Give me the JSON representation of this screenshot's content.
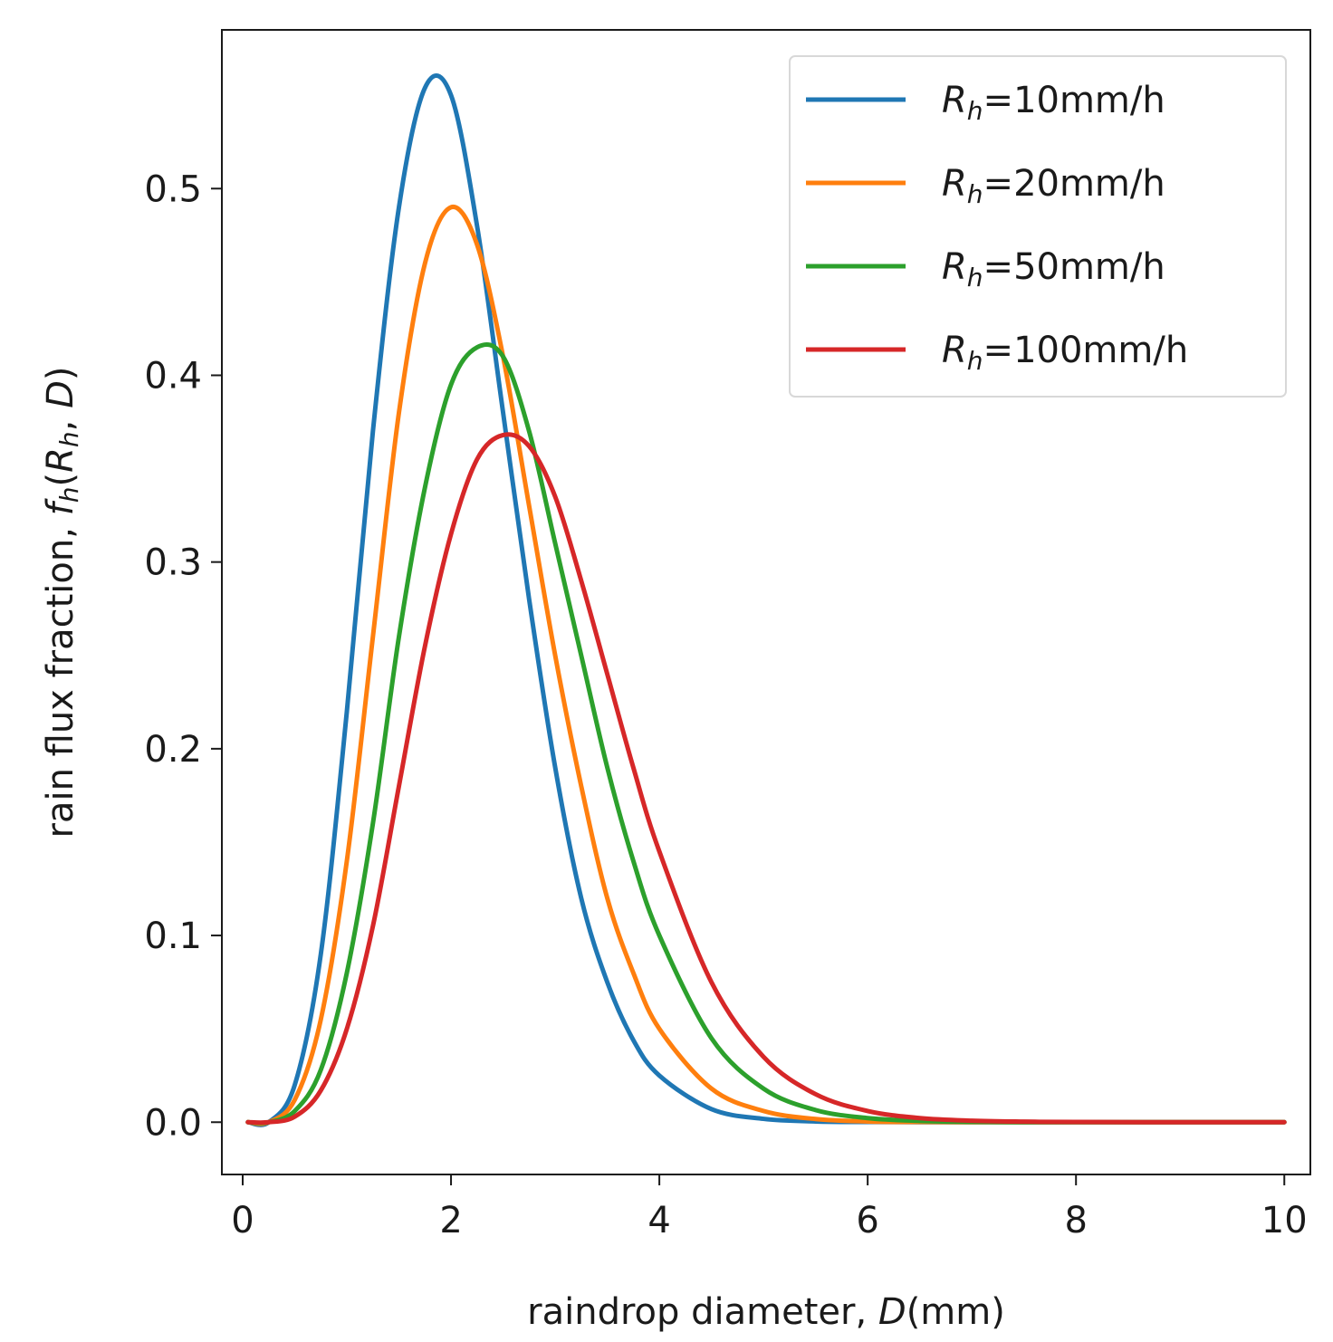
{
  "chart_data": {
    "type": "line",
    "title": "",
    "xlabel": {
      "prefix": "raindrop diameter, ",
      "var": "D",
      "suffix": "(mm)"
    },
    "ylabel": {
      "prefix": "rain flux fraction, ",
      "func": "f",
      "func_sub": "h",
      "open": "(",
      "arg1": "R",
      "arg1_sub": "h",
      "sep": ", ",
      "arg2": "D",
      "close": ")"
    },
    "xlim": [
      -0.2,
      10.25
    ],
    "ylim": [
      -0.028,
      0.585
    ],
    "xticks": [
      0,
      2,
      4,
      6,
      8,
      10
    ],
    "xtick_labels": [
      "0",
      "2",
      "4",
      "6",
      "8",
      "10"
    ],
    "yticks": [
      0.0,
      0.1,
      0.2,
      0.3,
      0.4,
      0.5
    ],
    "ytick_labels": [
      "0.0",
      "0.1",
      "0.2",
      "0.3",
      "0.4",
      "0.5"
    ],
    "grid": false,
    "legend_position": "top-right",
    "x": [
      0.05,
      0.25,
      0.5,
      0.75,
      1.0,
      1.25,
      1.5,
      1.75,
      2.0,
      2.25,
      2.5,
      2.75,
      3.0,
      3.25,
      3.5,
      3.75,
      4.0,
      4.5,
      5.0,
      5.5,
      6.0,
      6.5,
      7.0,
      7.5,
      8.0,
      9.0,
      10.0
    ],
    "series": [
      {
        "name": "R_h=10mm/h",
        "legend": {
          "var": "R",
          "sub": "h",
          "text": "=10mm/h"
        },
        "color": "#1f77b4",
        "values": [
          0.0,
          0.0,
          0.02,
          0.09,
          0.22,
          0.37,
          0.49,
          0.554,
          0.55,
          0.48,
          0.38,
          0.28,
          0.19,
          0.12,
          0.075,
          0.044,
          0.025,
          0.007,
          0.0018,
          0.0004,
          0.0001,
          0.0,
          0.0,
          0.0,
          0.0,
          0.0,
          0.0
        ]
      },
      {
        "name": "R_h=20mm/h",
        "legend": {
          "var": "R",
          "sub": "h",
          "text": "=20mm/h"
        },
        "color": "#ff7f0e",
        "values": [
          0.0,
          0.0,
          0.012,
          0.055,
          0.14,
          0.26,
          0.38,
          0.46,
          0.49,
          0.47,
          0.41,
          0.33,
          0.25,
          0.18,
          0.12,
          0.08,
          0.05,
          0.018,
          0.006,
          0.0017,
          0.0004,
          0.0001,
          0.0,
          0.0,
          0.0,
          0.0,
          0.0
        ]
      },
      {
        "name": "R_h=50mm/h",
        "legend": {
          "var": "R",
          "sub": "h",
          "text": "=50mm/h"
        },
        "color": "#2ca02c",
        "values": [
          0.0,
          0.0,
          0.006,
          0.028,
          0.08,
          0.16,
          0.26,
          0.34,
          0.395,
          0.415,
          0.41,
          0.37,
          0.31,
          0.25,
          0.19,
          0.14,
          0.1,
          0.045,
          0.018,
          0.0065,
          0.0022,
          0.0007,
          0.0002,
          0.0,
          0.0,
          0.0,
          0.0
        ]
      },
      {
        "name": "R_h=100mm/h",
        "legend": {
          "var": "R",
          "sub": "h",
          "text": "=100mm/h"
        },
        "color": "#d62728",
        "values": [
          0.0,
          0.0,
          0.003,
          0.017,
          0.05,
          0.105,
          0.18,
          0.255,
          0.315,
          0.355,
          0.368,
          0.362,
          0.335,
          0.29,
          0.24,
          0.19,
          0.145,
          0.075,
          0.035,
          0.015,
          0.006,
          0.0022,
          0.0008,
          0.0003,
          0.0001,
          0.0,
          0.0
        ]
      }
    ]
  }
}
